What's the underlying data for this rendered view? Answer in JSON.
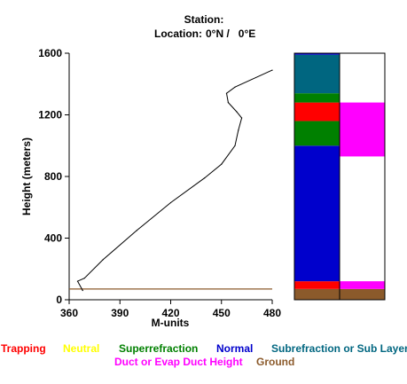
{
  "header": {
    "station_label": "Station:",
    "location_label": "Location:",
    "location_value": "0°N /   0°E"
  },
  "chart_data": {
    "type": "line",
    "xlabel": "M-units",
    "ylabel": "Height (meters)",
    "xlim": [
      360,
      480
    ],
    "ylim": [
      0,
      1600
    ],
    "x_ticks": [
      360,
      390,
      420,
      450,
      480
    ],
    "y_ticks": [
      0,
      400,
      800,
      1200,
      1600
    ],
    "grid": false,
    "series": [
      {
        "color": "#000000",
        "points": [
          [
            368,
            60
          ],
          [
            365,
            120
          ],
          [
            369,
            140
          ],
          [
            380,
            260
          ],
          [
            400,
            450
          ],
          [
            420,
            630
          ],
          [
            440,
            790
          ],
          [
            450,
            880
          ],
          [
            458,
            1000
          ],
          [
            460,
            1100
          ],
          [
            462,
            1180
          ],
          [
            459,
            1220
          ],
          [
            454,
            1280
          ],
          [
            453,
            1340
          ],
          [
            458,
            1380
          ],
          [
            480,
            1490
          ]
        ]
      }
    ],
    "reference_line": {
      "y": 70,
      "color": "#8B5A2B"
    },
    "profile_bars": [
      {
        "name": "left-column",
        "segments": [
          {
            "from": 0,
            "to": 70,
            "category": "Ground"
          },
          {
            "from": 70,
            "to": 120,
            "category": "Trapping"
          },
          {
            "from": 120,
            "to": 1000,
            "category": "Normal"
          },
          {
            "from": 1000,
            "to": 1160,
            "category": "Superrefraction"
          },
          {
            "from": 1160,
            "to": 1280,
            "category": "Trapping"
          },
          {
            "from": 1280,
            "to": 1340,
            "category": "Superrefraction"
          },
          {
            "from": 1340,
            "to": 1590,
            "category": "Subrefraction or Sub Layer"
          },
          {
            "from": 1590,
            "to": 1600,
            "category": "Normal"
          }
        ]
      },
      {
        "name": "right-column",
        "segments": [
          {
            "from": 0,
            "to": 70,
            "category": "Ground"
          },
          {
            "from": 70,
            "to": 120,
            "category": "Duct or Evap Duct Height"
          },
          {
            "from": 930,
            "to": 1280,
            "category": "Duct or Evap Duct Height"
          }
        ]
      }
    ]
  },
  "legend": {
    "row1": [
      {
        "label": "Trapping",
        "color": "#ff0000"
      },
      {
        "label": "Neutral",
        "color": "#ffff00"
      },
      {
        "label": "Superrefraction",
        "color": "#008000"
      },
      {
        "label": "Normal",
        "color": "#0000cc"
      },
      {
        "label": "Subrefraction or Sub Layer",
        "color": "#006680"
      }
    ],
    "row2": [
      {
        "label": "Duct or Evap Duct Height",
        "color": "#ff00ff"
      },
      {
        "label": "Ground",
        "color": "#8B5A2B"
      }
    ]
  },
  "category_colors": {
    "Trapping": "#ff0000",
    "Neutral": "#ffff00",
    "Superrefraction": "#008000",
    "Normal": "#0000cc",
    "Subrefraction or Sub Layer": "#006680",
    "Duct or Evap Duct Height": "#ff00ff",
    "Ground": "#8B5A2B"
  }
}
